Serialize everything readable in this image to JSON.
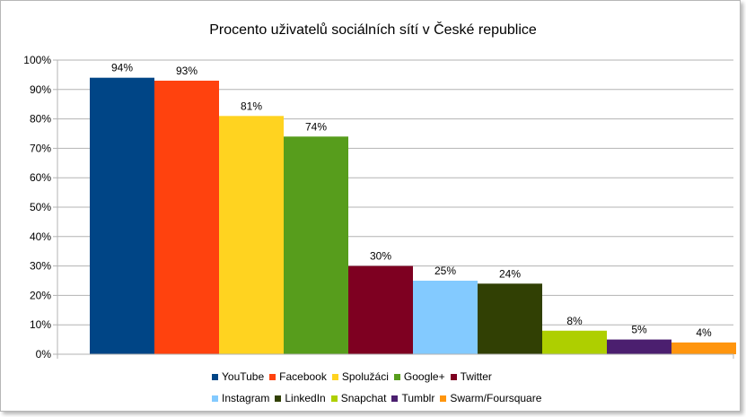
{
  "chart_data": {
    "type": "bar",
    "title": "Procento uživatelů sociálních sítí  v České republice",
    "xlabel": "",
    "ylabel": "",
    "ylim": [
      0,
      100
    ],
    "y_ticks": [
      "0%",
      "10%",
      "20%",
      "30%",
      "40%",
      "50%",
      "60%",
      "70%",
      "80%",
      "90%",
      "100%"
    ],
    "grid": true,
    "legend_position": "bottom",
    "series": [
      {
        "name": "YouTube",
        "value": 94,
        "label": "94%",
        "color": "#004586"
      },
      {
        "name": "Facebook",
        "value": 93,
        "label": "93%",
        "color": "#ff420e"
      },
      {
        "name": "Spolužáci",
        "value": 81,
        "label": "81%",
        "color": "#ffd320"
      },
      {
        "name": "Google+",
        "value": 74,
        "label": "74%",
        "color": "#579d1c"
      },
      {
        "name": "Twitter",
        "value": 30,
        "label": "30%",
        "color": "#7e0021"
      },
      {
        "name": "Instagram",
        "value": 25,
        "label": "25%",
        "color": "#83caff"
      },
      {
        "name": "LinkedIn",
        "value": 24,
        "label": "24%",
        "color": "#314004"
      },
      {
        "name": "Snapchat",
        "value": 8,
        "label": "8%",
        "color": "#aecf00"
      },
      {
        "name": "Tumblr",
        "value": 5,
        "label": "5%",
        "color": "#4b1f6f"
      },
      {
        "name": "Swarm/Foursquare",
        "value": 4,
        "label": "4%",
        "color": "#ff950e"
      }
    ]
  }
}
